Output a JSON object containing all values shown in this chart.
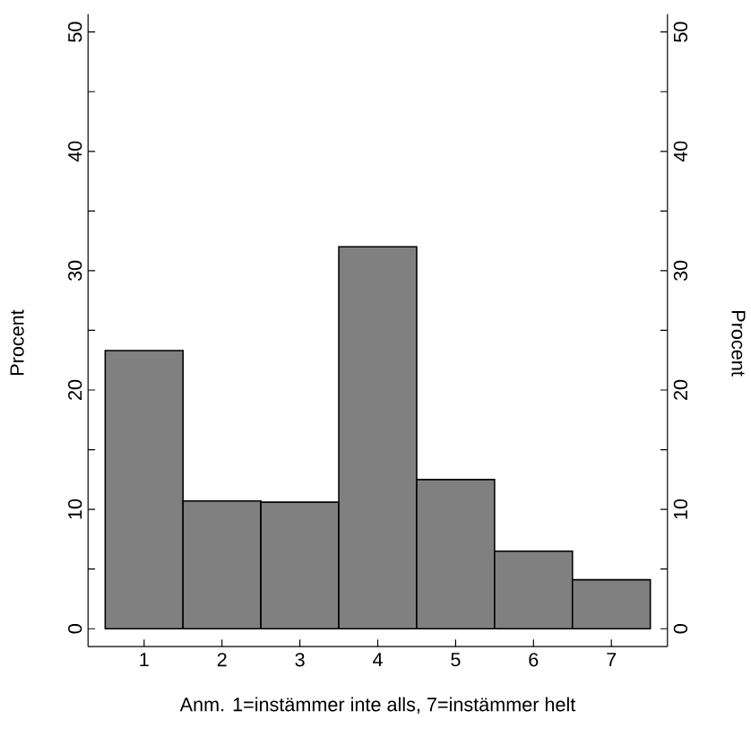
{
  "chart_data": {
    "type": "bar",
    "xlabel": "Anm. 1=instämmer inte alls, 7=instämmer helt",
    "ylabel": "Procent",
    "y2label": "Procent",
    "categories": [
      "1",
      "2",
      "3",
      "4",
      "5",
      "6",
      "7"
    ],
    "values": [
      23.3,
      10.7,
      10.6,
      32.0,
      12.5,
      6.5,
      4.1
    ],
    "color": "#808080",
    "ylim": [
      -1.5,
      51.5
    ],
    "yticks": [
      0,
      {
        "value": 5,
        "label": null
      },
      10,
      {
        "value": 15,
        "label": null
      },
      20,
      {
        "value": 25,
        "label": null
      },
      30,
      {
        "value": 35,
        "label": null
      },
      40,
      {
        "value": 45,
        "label": null
      },
      50
    ],
    "y2lim": [
      -1.5,
      51.5
    ],
    "y2ticks": [
      0,
      {
        "value": 5,
        "label": null
      },
      10,
      {
        "value": 15,
        "label": null
      },
      20,
      {
        "value": 25,
        "label": null
      },
      30,
      {
        "value": 35,
        "label": null
      },
      40,
      {
        "value": 45,
        "label": null
      },
      50
    ]
  }
}
